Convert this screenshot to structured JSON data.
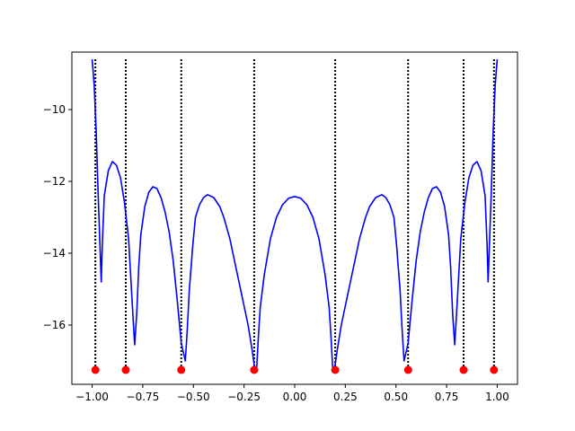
{
  "chart_data": {
    "type": "line",
    "title": "",
    "xlabel": "",
    "ylabel": "",
    "xlim": [
      -1.1,
      1.1
    ],
    "ylim": [
      -17.65,
      -8.4
    ],
    "xticks": [
      -1.0,
      -0.75,
      -0.5,
      -0.25,
      0.0,
      0.25,
      0.5,
      0.75,
      1.0
    ],
    "xtick_labels": [
      "−1.00",
      "−0.75",
      "−0.50",
      "−0.25",
      "0.00",
      "0.25",
      "0.50",
      "0.75",
      "1.00"
    ],
    "yticks": [
      -16,
      -14,
      -12,
      -10
    ],
    "ytick_labels": [
      "−16",
      "−14",
      "−12",
      "−10"
    ],
    "grid": false,
    "colors": {
      "curve": "#0000ff",
      "points": "#ff0000",
      "vlines": "#000000"
    },
    "series": [
      {
        "style": "solid-line",
        "x": [
          -1.0,
          -0.99,
          -0.98,
          -0.97,
          -0.96,
          -0.955,
          -0.95,
          -0.94,
          -0.92,
          -0.9,
          -0.88,
          -0.86,
          -0.84,
          -0.82,
          -0.81,
          -0.8,
          -0.79,
          -0.78,
          -0.77,
          -0.76,
          -0.74,
          -0.72,
          -0.7,
          -0.68,
          -0.66,
          -0.64,
          -0.62,
          -0.6,
          -0.58,
          -0.56,
          -0.54,
          -0.53,
          -0.52,
          -0.51,
          -0.505,
          -0.5,
          -0.49,
          -0.47,
          -0.45,
          -0.43,
          -0.4,
          -0.37,
          -0.35,
          -0.32,
          -0.29,
          -0.26,
          -0.23,
          -0.21,
          -0.2,
          -0.19,
          -0.188,
          -0.18,
          -0.17,
          -0.15,
          -0.12,
          -0.09,
          -0.06,
          -0.03,
          0.0,
          0.03,
          0.06,
          0.09,
          0.12,
          0.15,
          0.17,
          0.18,
          0.188,
          0.19,
          0.2,
          0.21,
          0.23,
          0.26,
          0.29,
          0.32,
          0.35,
          0.37,
          0.4,
          0.43,
          0.45,
          0.47,
          0.49,
          0.5,
          0.505,
          0.51,
          0.52,
          0.53,
          0.54,
          0.56,
          0.58,
          0.6,
          0.62,
          0.64,
          0.66,
          0.68,
          0.7,
          0.72,
          0.74,
          0.76,
          0.77,
          0.78,
          0.79,
          0.8,
          0.81,
          0.82,
          0.84,
          0.86,
          0.88,
          0.9,
          0.92,
          0.94,
          0.95,
          0.955,
          0.96,
          0.97,
          0.98,
          0.99,
          1.0
        ],
        "y": [
          -8.6,
          -9.3,
          -10.6,
          -12.4,
          -14.0,
          -14.8,
          -13.8,
          -12.4,
          -11.7,
          -11.45,
          -11.55,
          -11.9,
          -12.6,
          -13.6,
          -14.6,
          -15.6,
          -16.55,
          -15.7,
          -14.4,
          -13.5,
          -12.7,
          -12.3,
          -12.15,
          -12.2,
          -12.45,
          -12.85,
          -13.4,
          -14.2,
          -15.3,
          -16.5,
          -17.0,
          -16.1,
          -15.0,
          -14.3,
          -13.9,
          -13.6,
          -13.0,
          -12.65,
          -12.45,
          -12.37,
          -12.45,
          -12.7,
          -13.0,
          -13.6,
          -14.4,
          -15.2,
          -16.0,
          -16.7,
          -17.1,
          -17.25,
          -17.25,
          -16.4,
          -15.5,
          -14.6,
          -13.6,
          -13.0,
          -12.65,
          -12.47,
          -12.42,
          -12.47,
          -12.65,
          -13.0,
          -13.6,
          -14.6,
          -15.5,
          -16.4,
          -17.25,
          -17.25,
          -17.1,
          -16.7,
          -16.0,
          -15.2,
          -14.4,
          -13.6,
          -13.0,
          -12.7,
          -12.45,
          -12.37,
          -12.45,
          -12.65,
          -13.0,
          -13.6,
          -13.9,
          -14.3,
          -15.0,
          -16.1,
          -17.0,
          -16.5,
          -15.3,
          -14.2,
          -13.4,
          -12.85,
          -12.45,
          -12.2,
          -12.15,
          -12.3,
          -12.7,
          -13.5,
          -14.4,
          -15.7,
          -16.55,
          -15.6,
          -14.6,
          -13.6,
          -12.6,
          -11.9,
          -11.55,
          -11.45,
          -11.7,
          -12.4,
          -13.8,
          -14.8,
          -14.0,
          -12.4,
          -10.6,
          -9.3,
          -8.6
        ]
      },
      {
        "style": "points",
        "x": [
          -0.984,
          -0.834,
          -0.56,
          -0.2,
          0.2,
          0.56,
          0.834,
          0.984
        ],
        "y": [
          -17.25,
          -17.25,
          -17.25,
          -17.25,
          -17.25,
          -17.25,
          -17.25,
          -17.25
        ]
      }
    ],
    "vertical_lines": {
      "style": "dotted",
      "x": [
        -0.984,
        -0.834,
        -0.56,
        -0.2,
        0.2,
        0.56,
        0.834,
        0.984
      ],
      "y_from": -17.25,
      "y_to": -8.6
    }
  }
}
